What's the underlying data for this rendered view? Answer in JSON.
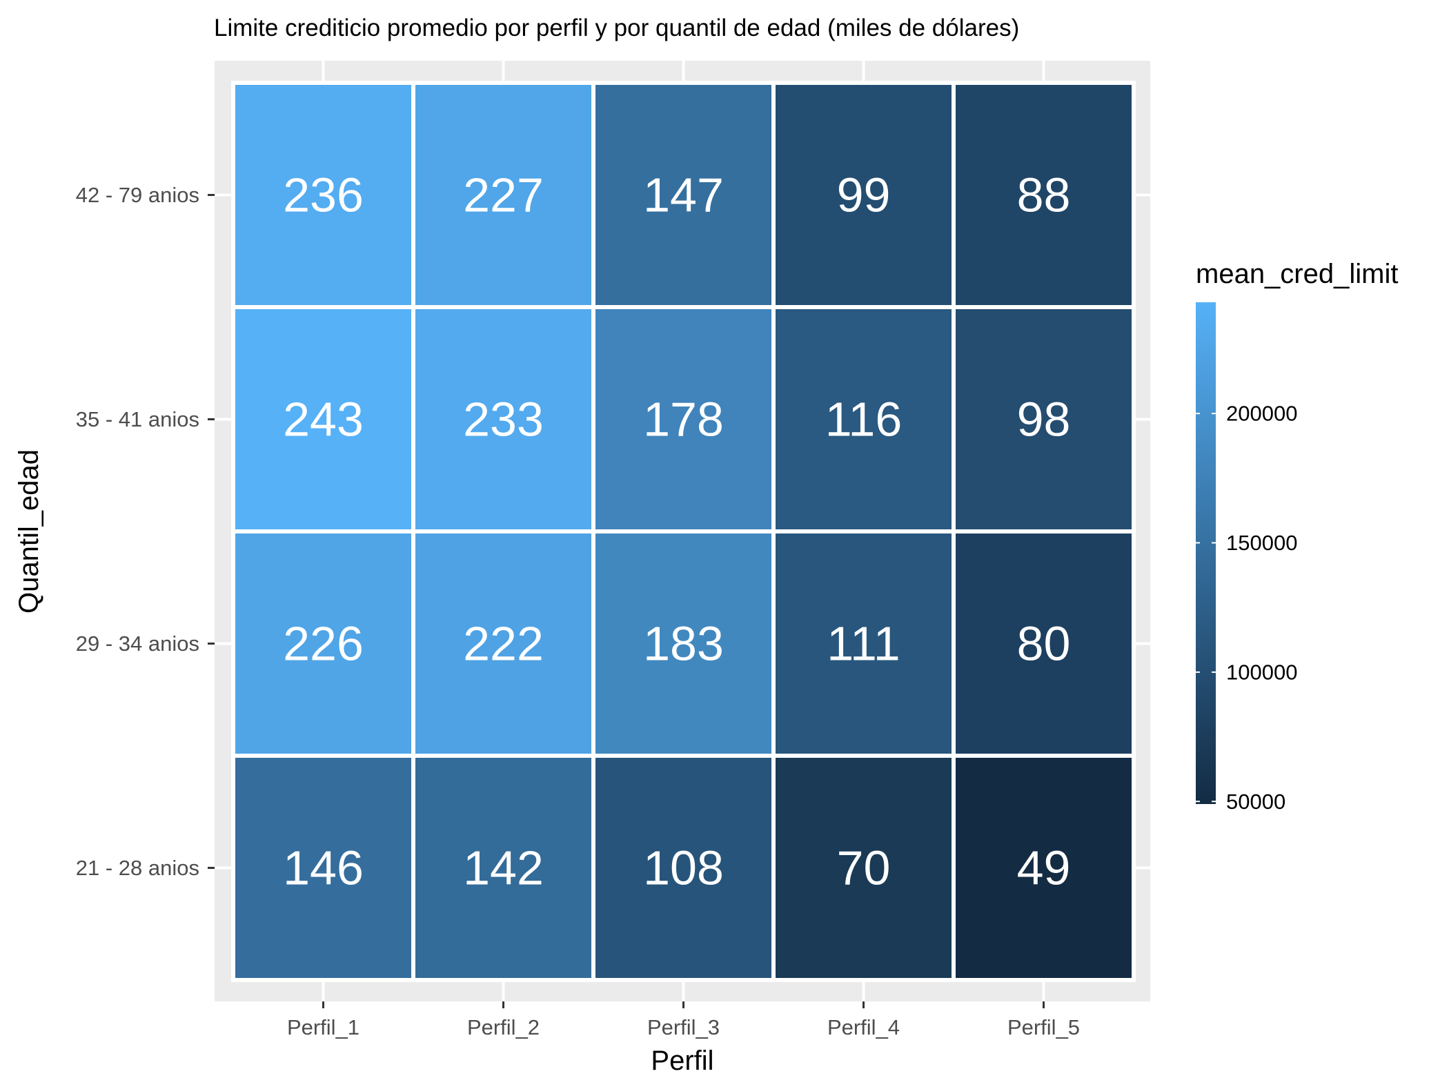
{
  "chart_data": {
    "type": "heatmap",
    "title": "Limite crediticio promedio por perfil y por quantil de edad (miles de dólares)",
    "xlabel": "Perfil",
    "ylabel": "Quantil_edad",
    "x_categories": [
      "Perfil_1",
      "Perfil_2",
      "Perfil_3",
      "Perfil_4",
      "Perfil_5"
    ],
    "y_categories": [
      "42 - 79 anios",
      "35 - 41 anios",
      "29 - 34 anios",
      "21 - 28 anios"
    ],
    "values": [
      [
        236,
        227,
        147,
        99,
        88
      ],
      [
        243,
        233,
        178,
        116,
        98
      ],
      [
        226,
        222,
        183,
        111,
        80
      ],
      [
        146,
        142,
        108,
        70,
        49
      ]
    ],
    "legend": {
      "title": "mean_cred_limit",
      "ticks": [
        50000,
        100000,
        150000,
        200000
      ],
      "tick_labels": [
        "50000",
        "100000",
        "150000",
        "200000"
      ],
      "range": [
        49000,
        243000
      ],
      "color_low": "#132b43",
      "color_high": "#56b1f7",
      "placement": "right"
    },
    "panel_background": "#ebebeb",
    "grid": true
  }
}
